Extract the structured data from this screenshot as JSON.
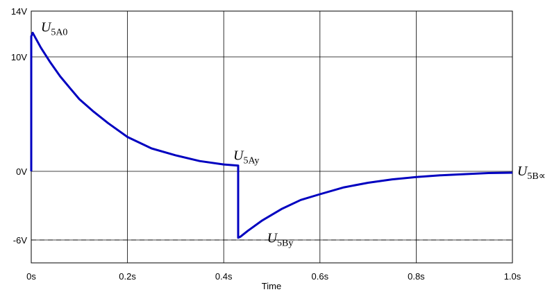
{
  "chart_data": {
    "type": "line",
    "title": "",
    "xlabel": "Time",
    "ylabel": "",
    "xlim": [
      0,
      1.0
    ],
    "ylim": [
      -8,
      14
    ],
    "grid": true,
    "x_ticks": [
      {
        "value": 0,
        "label": "0s"
      },
      {
        "value": 0.2,
        "label": "0.2s"
      },
      {
        "value": 0.4,
        "label": "0.4s"
      },
      {
        "value": 0.6,
        "label": "0.6s"
      },
      {
        "value": 0.8,
        "label": "0.8s"
      },
      {
        "value": 1.0,
        "label": "1.0s"
      }
    ],
    "y_ticks": [
      {
        "value": 14,
        "label": "14V"
      },
      {
        "value": 10,
        "label": "10V"
      },
      {
        "value": 0,
        "label": "0V"
      },
      {
        "value": -6,
        "label": "-6V"
      }
    ],
    "series": [
      {
        "color": "#0000c0",
        "x": [
          0,
          0,
          0.003,
          0.02,
          0.04,
          0.06,
          0.08,
          0.1,
          0.13,
          0.16,
          0.2,
          0.25,
          0.3,
          0.35,
          0.4,
          0.43,
          0.43,
          0.435,
          0.45,
          0.48,
          0.52,
          0.56,
          0.6,
          0.65,
          0.7,
          0.75,
          0.8,
          0.85,
          0.9,
          0.95,
          1.0
        ],
        "y": [
          0,
          11.8,
          12.1,
          10.8,
          9.5,
          8.3,
          7.3,
          6.3,
          5.2,
          4.2,
          3.0,
          2.0,
          1.4,
          0.9,
          0.6,
          0.5,
          -5.8,
          -5.7,
          -5.2,
          -4.3,
          -3.3,
          -2.5,
          -2.0,
          -1.4,
          -1.0,
          -0.7,
          -0.5,
          -0.35,
          -0.25,
          -0.15,
          -0.12
        ]
      }
    ],
    "reference_lines": [
      {
        "y": -6,
        "style": "dashed",
        "color": "#000000"
      }
    ],
    "annotations": [
      {
        "base": "U",
        "sub": "5A0",
        "x": 0.02,
        "y": 12.2
      },
      {
        "base": "U",
        "sub": "5Ay",
        "x": 0.42,
        "y": 1.0
      },
      {
        "base": "U",
        "sub": "5By",
        "x": 0.49,
        "y": -6.2
      },
      {
        "base": "U",
        "sub": "5B∝",
        "x": 1.01,
        "y": -0.35
      }
    ]
  }
}
